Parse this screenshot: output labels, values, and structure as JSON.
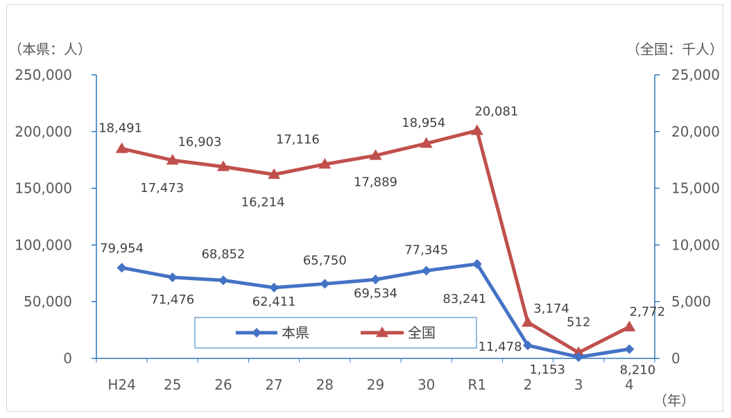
{
  "chart_data": {
    "type": "line",
    "left_unit": "（本県：人）",
    "right_unit": "（全国：千人）",
    "x_unit": "（年）",
    "categories": [
      "H24",
      "25",
      "26",
      "27",
      "28",
      "29",
      "30",
      "R1",
      "2",
      "3",
      "4"
    ],
    "left_axis": {
      "ylim": [
        0,
        250000
      ],
      "ticks": [
        "0",
        "50,000",
        "100,000",
        "150,000",
        "200,000",
        "250,000"
      ],
      "tick_values": [
        0,
        50000,
        100000,
        150000,
        200000,
        250000
      ]
    },
    "right_axis": {
      "ylim": [
        0,
        25000
      ],
      "ticks": [
        "0",
        "5,000",
        "10,000",
        "15,000",
        "20,000",
        "25,000"
      ],
      "tick_values": [
        0,
        5000,
        10000,
        15000,
        20000,
        25000
      ]
    },
    "series": [
      {
        "name": "本県",
        "axis": "left",
        "color": "#4472c4",
        "marker": "diamond",
        "values": [
          79954,
          71476,
          68852,
          62411,
          65750,
          69534,
          77345,
          83241,
          11478,
          1153,
          8210
        ],
        "labels": [
          "79,954",
          "71,476",
          "68,852",
          "62,411",
          "65,750",
          "69,534",
          "77,345",
          "83,241",
          "11,478",
          "1,153",
          "8,210"
        ]
      },
      {
        "name": "全国",
        "axis": "right",
        "color": "#c0504d",
        "marker": "triangle",
        "values": [
          18491,
          17473,
          16903,
          16214,
          17116,
          17889,
          18954,
          20081,
          3174,
          512,
          2772
        ],
        "labels": [
          "18,491",
          "17,473",
          "16,903",
          "16,214",
          "17,116",
          "17,889",
          "18,954",
          "20,081",
          "3,174",
          "512",
          "2,772"
        ]
      }
    ],
    "grid": false,
    "legend": "bottom-center"
  }
}
